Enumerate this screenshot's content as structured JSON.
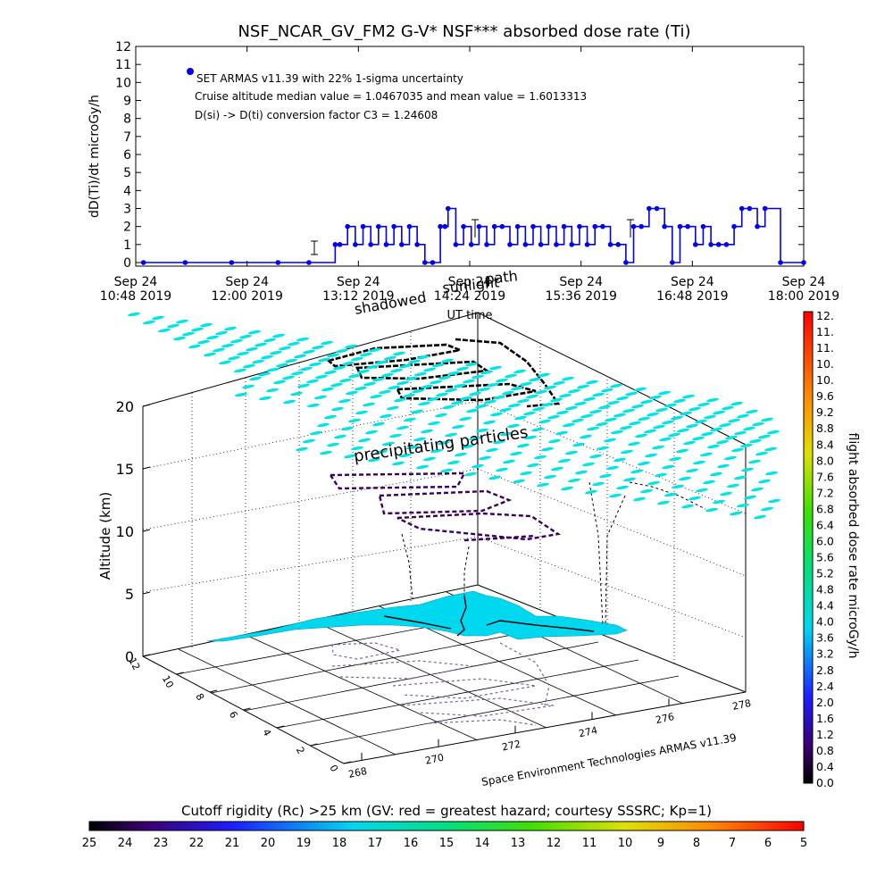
{
  "chart_data": [
    {
      "type": "line",
      "title": "NSF_NCAR_GV_FM2 G-V* NSF*** absorbed dose rate (Ti)",
      "xlabel": "UT time",
      "ylabel": "dD(Ti)/dt microGy/h",
      "ylim": [
        0,
        12
      ],
      "yticks": [
        "0",
        "1",
        "2",
        "3",
        "4",
        "5",
        "6",
        "7",
        "8",
        "9",
        "10",
        "11",
        "12"
      ],
      "xticks": [
        {
          "date": "Sep 24",
          "time": "10:48",
          "year": "2019"
        },
        {
          "date": "Sep 24",
          "time": "12:00",
          "year": "2019"
        },
        {
          "date": "Sep 24",
          "time": "13:12",
          "year": "2019"
        },
        {
          "date": "Sep 24",
          "time": "14:24",
          "year": "2019"
        },
        {
          "date": "Sep 24",
          "time": "15:36",
          "year": "2019"
        },
        {
          "date": "Sep 24",
          "time": "16:48",
          "year": "2019"
        },
        {
          "date": "Sep 24",
          "time": "18:00",
          "year": "2019"
        }
      ],
      "legend": [
        "SET ARMAS v11.39 with 22% 1-sigma uncertainty",
        "Cruise altitude median value = 1.0467035 and mean value = 1.6013313",
        "D(si) -> D(ti) conversion factor C3 = 1.24608"
      ],
      "series": [
        {
          "name": "SET ARMAS v11.39",
          "color": "#0000ee",
          "x": [
            "10:53",
            "11:20",
            "11:50",
            "12:20",
            "12:40",
            "12:57",
            "13:00",
            "13:05",
            "13:10",
            "13:15",
            "13:20",
            "13:25",
            "13:30",
            "13:35",
            "13:40",
            "13:45",
            "13:50",
            "13:55",
            "14:00",
            "14:05",
            "14:08",
            "14:10",
            "14:15",
            "14:20",
            "14:25",
            "14:30",
            "14:35",
            "14:40",
            "14:45",
            "14:50",
            "14:55",
            "15:00",
            "15:05",
            "15:10",
            "15:15",
            "15:20",
            "15:25",
            "15:30",
            "15:35",
            "15:40",
            "15:45",
            "15:50",
            "15:55",
            "16:00",
            "16:05",
            "16:10",
            "16:15",
            "16:20",
            "16:25",
            "16:30",
            "16:35",
            "16:40",
            "16:45",
            "16:50",
            "16:55",
            "17:00",
            "17:05",
            "17:10",
            "17:15",
            "17:20",
            "17:25",
            "17:30",
            "17:35",
            "17:45",
            "18:00"
          ],
          "y": [
            0,
            0,
            0,
            0,
            0,
            1,
            1,
            2,
            1,
            2,
            1,
            2,
            1,
            2,
            1,
            2,
            1,
            0,
            0,
            2,
            2,
            3,
            1,
            2,
            1,
            2,
            1,
            2,
            2,
            1,
            2,
            1,
            2,
            1,
            2,
            1,
            2,
            1,
            2,
            1,
            2,
            2,
            1,
            1,
            0,
            2,
            2,
            3,
            3,
            2,
            0,
            2,
            2,
            1,
            2,
            1,
            1,
            1,
            2,
            3,
            3,
            2,
            3,
            0,
            0
          ]
        }
      ]
    },
    {
      "type": "scatter",
      "subtype": "3d-flight-track",
      "zlabel": "Altitude (km)",
      "zticks": [
        "0",
        "5",
        "10",
        "15",
        "20"
      ],
      "xticks": [
        "268",
        "270",
        "272",
        "274",
        "276",
        "278"
      ],
      "yticks": [
        "0",
        "2",
        "4",
        "6",
        "8",
        "10",
        "12"
      ],
      "annotations": [
        "precipitating particles",
        "sunlight",
        "path",
        "shadowed"
      ],
      "credit": "Space Environment Technologies ARMAS v11.39",
      "colorbar": {
        "label": "flight absorbed dose rate microGy/h",
        "ticks": [
          "0.0",
          "0.4",
          "0.8",
          "1.2",
          "1.6",
          "2.0",
          "2.4",
          "2.8",
          "3.2",
          "3.6",
          "4.0",
          "4.4",
          "4.8",
          "5.2",
          "5.6",
          "6.0",
          "6.4",
          "6.8",
          "7.2",
          "7.6",
          "8.0",
          "8.4",
          "8.8",
          "9.2",
          "9.6",
          "10.",
          "10.",
          "11.",
          "11.",
          "12."
        ]
      },
      "cutoff_colorbar": {
        "label": "Cutoff rigidity (Rc) >25 km (GV: red = greatest hazard; courtesy SSSRC; Kp=1)",
        "ticks": [
          "25",
          "24",
          "23",
          "22",
          "21",
          "20",
          "19",
          "18",
          "17",
          "16",
          "15",
          "14",
          "13",
          "12",
          "11",
          "10",
          "9",
          "8",
          "7",
          "6",
          "5"
        ]
      }
    }
  ],
  "colors": {
    "series": "#0000ee",
    "particles": "#00e5e5",
    "ground": "#00d8f0",
    "track_dark": "#000000",
    "track_purple": "#3a0060",
    "shadow": "#8060a0"
  }
}
